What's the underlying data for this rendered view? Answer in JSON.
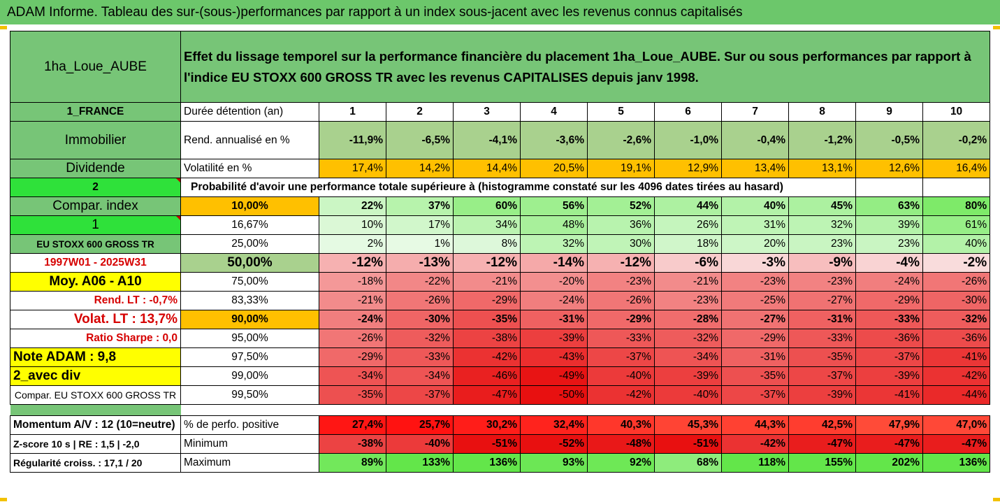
{
  "title": "ADAM Informe. Tableau des sur-(sous-)performances par rapport à un index sous-jacent avec les revenus connus capitalisés",
  "asset_name": "1ha_Loue_AUBE",
  "description": "Effet du lissage temporel sur la performance financière du placement 1ha_Loue_AUBE. Sur ou sous performances par rapport à l'indice EU STOXX 600 GROSS TR avec les revenus CAPITALISES depuis janv 1998.",
  "left": {
    "country": "1_FRANCE",
    "category": "Immobilier",
    "dividende": "Dividende",
    "code2": "2",
    "compar_index": "Compar. index",
    "code1": "1",
    "index_name": "EU STOXX 600 GROSS TR",
    "period": "1997W01 - 2025W31",
    "moy": "Moy. A06 - A10",
    "rend_lt": "Rend. LT :   -0,7%",
    "volat_lt": "Volat. LT :   13,7%",
    "sharpe": "Ratio Sharpe :   0,0",
    "note": "Note ADAM : 9,8",
    "avec_div": "2_avec div",
    "compar_full": "Compar. EU STOXX 600 GROSS TR",
    "momentum": "Momentum A/V : 12 (10=neutre)",
    "zscore": "Z-score 10 s  |  RE : 1,5  |  -2,0",
    "regularite": "Régularité croiss. : 17,1 / 20"
  },
  "labels": {
    "duree": "Durée détention (an)",
    "rend": "Rend. annualisé en %",
    "volat": "Volatilité en %",
    "proba": "Probabilité d'avoir une performance totale supérieure à (histogramme constaté sur les 4096 dates tirées au hasard)",
    "perf_pos": "% de perfo. positive",
    "minimum": "Minimum",
    "maximum": "Maximum"
  },
  "years": [
    "1",
    "2",
    "3",
    "4",
    "5",
    "6",
    "7",
    "8",
    "9",
    "10"
  ],
  "rend": [
    "-11,9%",
    "-6,5%",
    "-4,1%",
    "-3,6%",
    "-2,6%",
    "-1,0%",
    "-0,4%",
    "-1,2%",
    "-0,5%",
    "-0,2%"
  ],
  "volat": [
    "17,4%",
    "14,2%",
    "14,4%",
    "20,5%",
    "19,1%",
    "12,9%",
    "13,4%",
    "13,1%",
    "12,6%",
    "16,4%"
  ],
  "percentile_rows": [
    {
      "p": "10,00%",
      "vals": [
        "22%",
        "37%",
        "60%",
        "56%",
        "52%",
        "44%",
        "40%",
        "45%",
        "63%",
        "80%"
      ]
    },
    {
      "p": "16,67%",
      "vals": [
        "10%",
        "17%",
        "34%",
        "48%",
        "36%",
        "26%",
        "31%",
        "32%",
        "39%",
        "61%"
      ]
    },
    {
      "p": "25,00%",
      "vals": [
        "2%",
        "1%",
        "8%",
        "32%",
        "30%",
        "18%",
        "20%",
        "23%",
        "23%",
        "40%"
      ]
    },
    {
      "p": "50,00%",
      "vals": [
        "-12%",
        "-13%",
        "-12%",
        "-14%",
        "-12%",
        "-6%",
        "-3%",
        "-9%",
        "-4%",
        "-2%"
      ]
    },
    {
      "p": "75,00%",
      "vals": [
        "-18%",
        "-22%",
        "-21%",
        "-20%",
        "-23%",
        "-21%",
        "-23%",
        "-23%",
        "-24%",
        "-26%"
      ]
    },
    {
      "p": "83,33%",
      "vals": [
        "-21%",
        "-26%",
        "-29%",
        "-24%",
        "-26%",
        "-23%",
        "-25%",
        "-27%",
        "-29%",
        "-30%"
      ]
    },
    {
      "p": "90,00%",
      "vals": [
        "-24%",
        "-30%",
        "-35%",
        "-31%",
        "-29%",
        "-28%",
        "-27%",
        "-31%",
        "-33%",
        "-32%"
      ]
    },
    {
      "p": "95,00%",
      "vals": [
        "-26%",
        "-32%",
        "-38%",
        "-39%",
        "-33%",
        "-32%",
        "-29%",
        "-33%",
        "-36%",
        "-36%"
      ]
    },
    {
      "p": "97,50%",
      "vals": [
        "-29%",
        "-33%",
        "-42%",
        "-43%",
        "-37%",
        "-34%",
        "-31%",
        "-35%",
        "-37%",
        "-41%"
      ]
    },
    {
      "p": "99,00%",
      "vals": [
        "-34%",
        "-34%",
        "-46%",
        "-49%",
        "-40%",
        "-39%",
        "-35%",
        "-37%",
        "-39%",
        "-42%"
      ]
    },
    {
      "p": "99,50%",
      "vals": [
        "-35%",
        "-37%",
        "-47%",
        "-50%",
        "-42%",
        "-40%",
        "-37%",
        "-39%",
        "-41%",
        "-44%"
      ]
    }
  ],
  "perf_pos": [
    "27,4%",
    "25,7%",
    "30,2%",
    "32,4%",
    "40,3%",
    "45,3%",
    "44,3%",
    "42,5%",
    "47,9%",
    "47,0%"
  ],
  "minimum": [
    "-38%",
    "-40%",
    "-51%",
    "-52%",
    "-48%",
    "-51%",
    "-42%",
    "-47%",
    "-47%",
    "-47%"
  ],
  "maximum": [
    "89%",
    "133%",
    "136%",
    "93%",
    "92%",
    "68%",
    "118%",
    "155%",
    "202%",
    "136%"
  ]
}
